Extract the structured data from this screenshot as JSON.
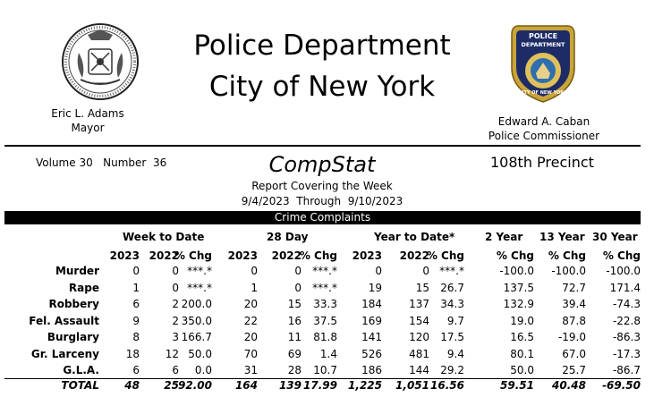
{
  "header": {
    "title_line1": "Police Department",
    "title_line2": "City of New York",
    "mayor_name": "Eric L. Adams",
    "mayor_title": "Mayor",
    "commissioner_name": "Edward A. Caban",
    "commissioner_title": "Police Commissioner",
    "badge_top_text": "POLICE",
    "badge_mid_text": "DEPARTMENT",
    "badge_bottom_text": "CITY OF NEW YORK"
  },
  "report": {
    "volume": "Volume 30   Number  36",
    "title": "CompStat",
    "precinct": "108th Precinct",
    "covering": "Report Covering the Week",
    "dates": "9/4/2023  Through  9/10/2023",
    "section": "Crime Complaints"
  },
  "table": {
    "groups": [
      "Week to Date",
      "28 Day",
      "Year to Date*",
      "2 Year",
      "13 Year",
      "30 Year"
    ],
    "columns": [
      "2023",
      "2022",
      "% Chg",
      "2023",
      "2022",
      "% Chg",
      "2023",
      "2022",
      "% Chg",
      "% Chg",
      "% Chg",
      "% Chg"
    ],
    "rows": [
      {
        "label": "Murder",
        "values": [
          "0",
          "0",
          "***.*",
          "0",
          "0",
          "***.*",
          "0",
          "0",
          "***.*",
          "-100.0",
          "-100.0",
          "-100.0"
        ]
      },
      {
        "label": "Rape",
        "values": [
          "1",
          "0",
          "***.*",
          "1",
          "0",
          "***.*",
          "19",
          "15",
          "26.7",
          "137.5",
          "72.7",
          "171.4"
        ]
      },
      {
        "label": "Robbery",
        "values": [
          "6",
          "2",
          "200.0",
          "20",
          "15",
          "33.3",
          "184",
          "137",
          "34.3",
          "132.9",
          "39.4",
          "-74.3"
        ]
      },
      {
        "label": "Fel. Assault",
        "values": [
          "9",
          "2",
          "350.0",
          "22",
          "16",
          "37.5",
          "169",
          "154",
          "9.7",
          "19.0",
          "87.8",
          "-22.8"
        ]
      },
      {
        "label": "Burglary",
        "values": [
          "8",
          "3",
          "166.7",
          "20",
          "11",
          "81.8",
          "141",
          "120",
          "17.5",
          "16.5",
          "-19.0",
          "-86.3"
        ]
      },
      {
        "label": "Gr. Larceny",
        "values": [
          "18",
          "12",
          "50.0",
          "70",
          "69",
          "1.4",
          "526",
          "481",
          "9.4",
          "80.1",
          "67.0",
          "-17.3"
        ]
      },
      {
        "label": "G.L.A.",
        "values": [
          "6",
          "6",
          "0.0",
          "31",
          "28",
          "10.7",
          "186",
          "144",
          "29.2",
          "50.0",
          "25.7",
          "-86.7"
        ]
      }
    ],
    "total": {
      "label": "TOTAL",
      "values": [
        "48",
        "25",
        "92.00",
        "164",
        "139",
        "17.99",
        "1,225",
        "1,051",
        "16.56",
        "59.51",
        "40.48",
        "-69.50"
      ]
    }
  }
}
